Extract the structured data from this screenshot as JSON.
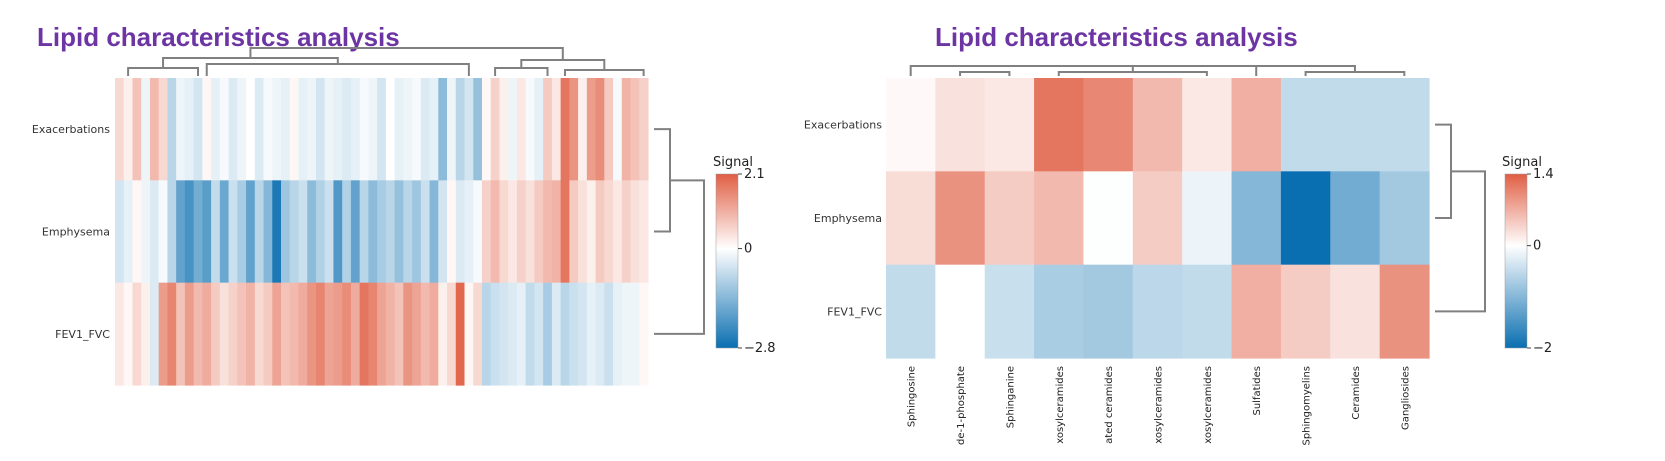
{
  "colors": {
    "title": "#6d35a3",
    "scale_low": "#0a6fb0",
    "scale_mid": "#ffffff",
    "scale_high": "#e05f44",
    "dendrogram": "#808080"
  },
  "chart_data": [
    {
      "type": "heatmap",
      "title": "Lipid characteristics analysis",
      "rows": [
        "Exacerbations",
        "Emphysema",
        "FEV1_FVC"
      ],
      "columns": [],
      "colorbar": {
        "title": "Signal",
        "max": 2.1,
        "mid": 0,
        "min": -2.8,
        "max_label": "2.1",
        "mid_label": "0",
        "min_label": "−2.8"
      },
      "values": [
        [
          0.5,
          0.2,
          0.8,
          -0.2,
          0.9,
          0.5,
          -0.8,
          -0.2,
          -0.3,
          -0.5,
          0.1,
          -0.3,
          -0.1,
          -0.4,
          -0.2,
          0.0,
          -0.4,
          -0.1,
          -0.2,
          -0.3,
          0.1,
          -0.3,
          -0.2,
          -0.5,
          -0.2,
          -0.3,
          -0.4,
          -0.3,
          -0.1,
          -0.2,
          -0.5,
          0.0,
          -0.3,
          -0.2,
          -0.1,
          -0.4,
          -0.3,
          -1.3,
          -0.2,
          -0.8,
          -0.5,
          -1.2,
          0.1,
          0.6,
          0.2,
          -0.2,
          0.3,
          -0.1,
          -0.3,
          0.7,
          0.3,
          1.8,
          1.4,
          0.2,
          1.3,
          1.5,
          0.7,
          -0.1,
          1.0,
          0.8,
          0.6
        ],
        [
          -0.5,
          -0.3,
          0.1,
          -0.2,
          -0.4,
          -0.1,
          -0.8,
          -1.8,
          -2.1,
          -1.6,
          -1.9,
          -0.7,
          -1.7,
          -0.6,
          -1.0,
          -1.8,
          -0.8,
          -1.4,
          -2.6,
          -1.1,
          -0.8,
          -0.6,
          -1.3,
          -0.9,
          -0.6,
          -2.0,
          -0.9,
          -1.8,
          -0.8,
          -1.3,
          -1.0,
          -0.8,
          -1.2,
          -0.8,
          -1.1,
          -0.6,
          -1.4,
          -0.5,
          0.1,
          -0.4,
          -0.3,
          -0.1,
          0.6,
          0.9,
          0.5,
          0.3,
          0.6,
          0.4,
          0.7,
          0.9,
          1.0,
          1.8,
          0.7,
          0.4,
          0.2,
          0.7,
          0.5,
          0.3,
          0.6,
          0.4,
          0.3
        ],
        [
          0.3,
          0.1,
          0.5,
          0.2,
          -0.4,
          1.3,
          1.6,
          0.8,
          1.3,
          0.9,
          1.1,
          0.7,
          0.4,
          0.6,
          0.8,
          1.0,
          0.5,
          0.7,
          1.2,
          0.8,
          0.9,
          1.1,
          1.4,
          1.6,
          1.2,
          1.3,
          1.5,
          1.1,
          1.8,
          1.6,
          1.2,
          1.0,
          0.8,
          1.4,
          1.2,
          0.9,
          1.1,
          0.2,
          0.5,
          2.0,
          0.1,
          0.5,
          -0.8,
          -0.6,
          -0.5,
          -0.4,
          -0.3,
          -0.7,
          -0.5,
          -1.0,
          -0.4,
          -0.8,
          -0.6,
          -0.5,
          -0.3,
          -0.4,
          -0.6,
          -0.3,
          -0.2,
          -0.2,
          0.1
        ]
      ]
    },
    {
      "type": "heatmap",
      "title": "Lipid characteristics analysis",
      "rows": [
        "Exacerbations",
        "Emphysema",
        "FEV1_FVC"
      ],
      "columns": [
        "Sphingosine",
        "de-1-phosphate",
        "Sphinganine",
        "xosylceramides",
        "ated ceramides",
        "xosylceramides",
        "xosylceramides",
        "Sulfatides",
        "Sphingomyelins",
        "Ceramides",
        "Gangliosides"
      ],
      "colorbar": {
        "title": "Signal",
        "max": 1.4,
        "mid": 0,
        "min": -2,
        "max_label": "1.4",
        "mid_label": "0",
        "min_label": "−2"
      },
      "values": [
        [
          0.05,
          0.25,
          0.2,
          1.2,
          1.05,
          0.6,
          0.2,
          0.7,
          -0.5,
          -0.5,
          -0.5
        ],
        [
          0.3,
          0.95,
          0.45,
          0.6,
          -0.02,
          0.45,
          -0.15,
          -1.0,
          -2.0,
          -1.15,
          -0.75
        ],
        [
          -0.5,
          0.0,
          -0.45,
          -0.7,
          -0.75,
          -0.55,
          -0.5,
          0.7,
          0.45,
          0.25,
          0.95
        ]
      ]
    }
  ]
}
